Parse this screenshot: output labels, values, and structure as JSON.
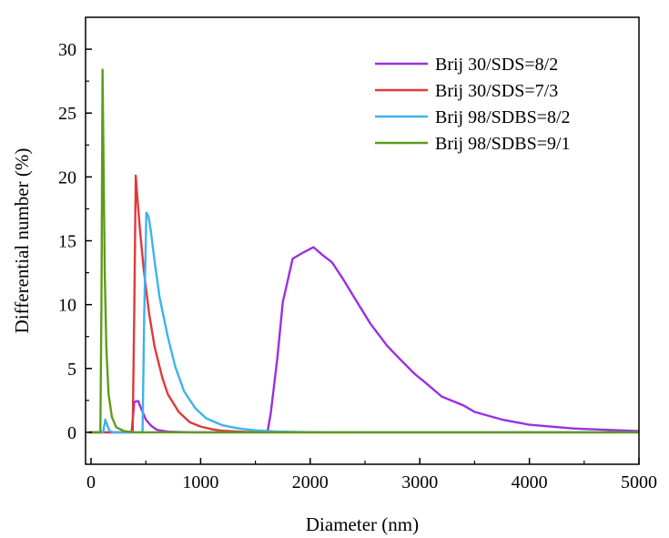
{
  "chart_data": {
    "type": "line",
    "title": "",
    "xlabel": "Diameter (nm)",
    "ylabel": "Differential number (%)",
    "xlim": [
      -50,
      5000
    ],
    "ylim": [
      -2.5,
      32.5
    ],
    "xticks": [
      0,
      1000,
      2000,
      3000,
      4000,
      5000
    ],
    "yticks": [
      0,
      5,
      10,
      15,
      20,
      25,
      30
    ],
    "xtick_labels": [
      "0",
      "1000",
      "2000",
      "3000",
      "4000",
      "5000"
    ],
    "ytick_labels": [
      "0",
      "5",
      "10",
      "15",
      "20",
      "25",
      "30"
    ],
    "grid": false,
    "legend_position": "top-right",
    "series": [
      {
        "name": "Brij 30/SDS=8/2",
        "color": "#9b30e0",
        "points": [
          [
            -20,
            0
          ],
          [
            370,
            0
          ],
          [
            395,
            2.4
          ],
          [
            430,
            2.45
          ],
          [
            460,
            1.8
          ],
          [
            500,
            1.0
          ],
          [
            550,
            0.5
          ],
          [
            600,
            0.2
          ],
          [
            700,
            0.05
          ],
          [
            900,
            0
          ],
          [
            1610,
            0
          ],
          [
            1640,
            1.5
          ],
          [
            1700,
            5.8
          ],
          [
            1750,
            10.2
          ],
          [
            1840,
            13.6
          ],
          [
            1940,
            14.1
          ],
          [
            2030,
            14.5
          ],
          [
            2110,
            13.9
          ],
          [
            2200,
            13.3
          ],
          [
            2300,
            12.0
          ],
          [
            2420,
            10.3
          ],
          [
            2550,
            8.5
          ],
          [
            2700,
            6.8
          ],
          [
            2800,
            5.9
          ],
          [
            2950,
            4.6
          ],
          [
            3050,
            3.9
          ],
          [
            3200,
            2.8
          ],
          [
            3400,
            2.1
          ],
          [
            3500,
            1.6
          ],
          [
            3750,
            1.0
          ],
          [
            4000,
            0.6
          ],
          [
            4400,
            0.3
          ],
          [
            5000,
            0.1
          ]
        ]
      },
      {
        "name": "Brij 30/SDS=7/3",
        "color": "#e0393b",
        "points": [
          [
            -20,
            0
          ],
          [
            380,
            0
          ],
          [
            395,
            10
          ],
          [
            408,
            20.1
          ],
          [
            420,
            18.7
          ],
          [
            445,
            16.0
          ],
          [
            480,
            12.8
          ],
          [
            530,
            9.3
          ],
          [
            580,
            6.7
          ],
          [
            650,
            4.3
          ],
          [
            700,
            3.0
          ],
          [
            800,
            1.6
          ],
          [
            900,
            0.8
          ],
          [
            1000,
            0.45
          ],
          [
            1100,
            0.25
          ],
          [
            1200,
            0.12
          ],
          [
            1400,
            0.04
          ],
          [
            1600,
            0
          ],
          [
            5000,
            0
          ]
        ]
      },
      {
        "name": "Brij 98/SDBS=8/2",
        "color": "#3db2ee",
        "points": [
          [
            -20,
            0
          ],
          [
            110,
            0
          ],
          [
            130,
            1.0
          ],
          [
            150,
            0.5
          ],
          [
            170,
            0.1
          ],
          [
            200,
            0
          ],
          [
            470,
            0
          ],
          [
            485,
            9
          ],
          [
            505,
            17.2
          ],
          [
            525,
            16.9
          ],
          [
            545,
            15.8
          ],
          [
            580,
            13.4
          ],
          [
            625,
            10.6
          ],
          [
            700,
            7.5
          ],
          [
            770,
            5.1
          ],
          [
            850,
            3.2
          ],
          [
            950,
            1.9
          ],
          [
            1050,
            1.1
          ],
          [
            1200,
            0.55
          ],
          [
            1350,
            0.3
          ],
          [
            1500,
            0.15
          ],
          [
            1700,
            0.06
          ],
          [
            2000,
            0.02
          ],
          [
            2500,
            0
          ],
          [
            5000,
            0
          ]
        ]
      },
      {
        "name": "Brij 98/SDBS=9/1",
        "color": "#5d9c1a",
        "points": [
          [
            -20,
            0
          ],
          [
            85,
            0
          ],
          [
            95,
            10
          ],
          [
            105,
            28.4
          ],
          [
            115,
            20.5
          ],
          [
            125,
            12.5
          ],
          [
            140,
            6.5
          ],
          [
            160,
            3.0
          ],
          [
            190,
            1.2
          ],
          [
            230,
            0.4
          ],
          [
            300,
            0.1
          ],
          [
            400,
            0
          ],
          [
            5000,
            0
          ]
        ]
      }
    ]
  }
}
